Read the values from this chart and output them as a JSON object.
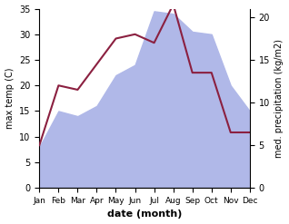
{
  "months": [
    "Jan",
    "Feb",
    "Mar",
    "Apr",
    "May",
    "Jun",
    "Jul",
    "Aug",
    "Sep",
    "Oct",
    "Nov",
    "Dec"
  ],
  "month_x": [
    1,
    2,
    3,
    4,
    5,
    6,
    7,
    8,
    9,
    10,
    11,
    12
  ],
  "temp_area": [
    8.0,
    15.0,
    14.0,
    16.0,
    22.0,
    24.0,
    34.5,
    34.0,
    30.5,
    30.0,
    20.0,
    15.0
  ],
  "precip_line": [
    5.0,
    12.0,
    11.5,
    14.5,
    17.5,
    18.0,
    17.0,
    21.5,
    13.5,
    13.5,
    6.5,
    6.5
  ],
  "temp_ylim": [
    0,
    35
  ],
  "precip_ylim": [
    0,
    21
  ],
  "temp_yticks": [
    0,
    5,
    10,
    15,
    20,
    25,
    30,
    35
  ],
  "precip_yticks": [
    0,
    5,
    10,
    15,
    20
  ],
  "fill_color": "#b0b8e8",
  "line_color": "#8b2040",
  "left_ylabel": "max temp (C)",
  "right_ylabel": "med. precipitation (kg/m2)",
  "xlabel": "date (month)"
}
